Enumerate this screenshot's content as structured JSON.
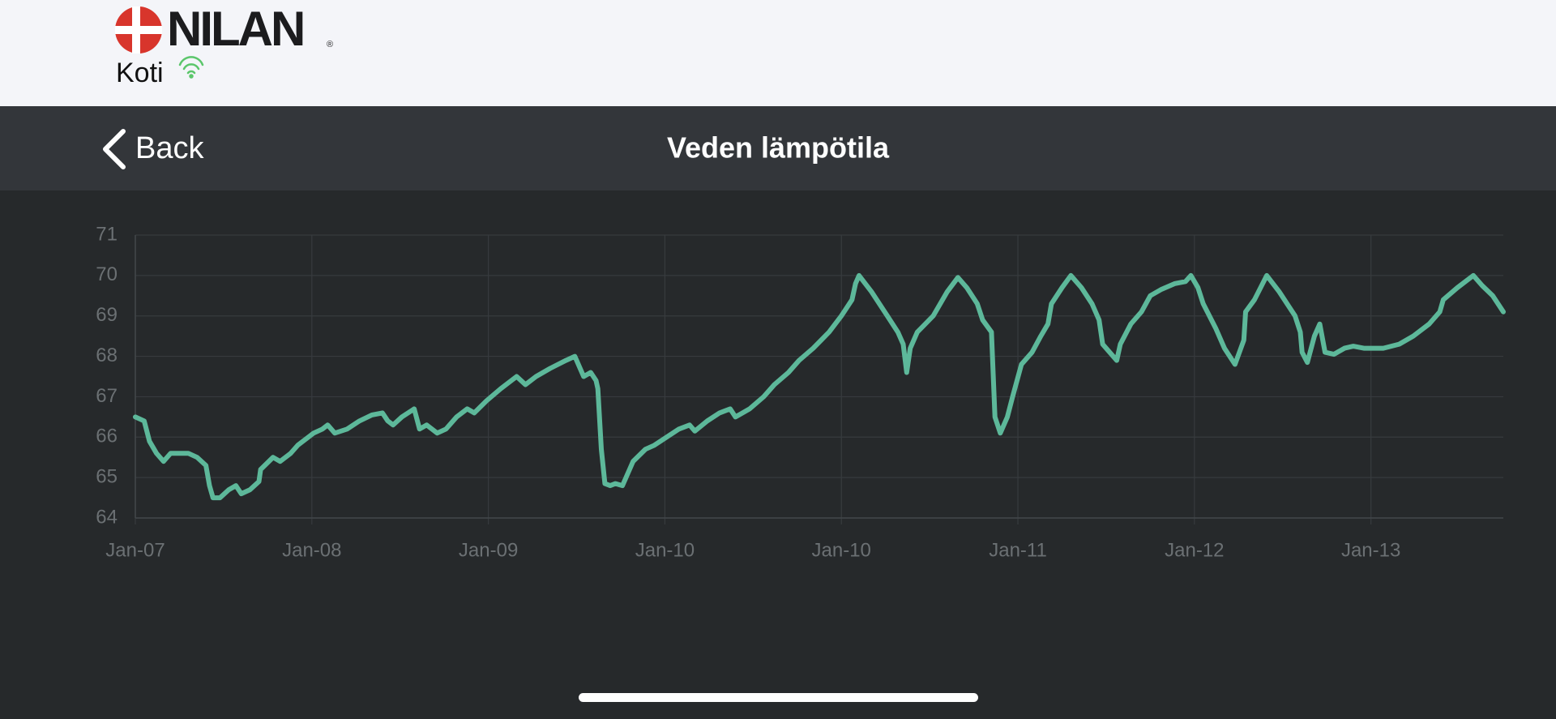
{
  "header": {
    "logo_text": "NILAN",
    "registered": "®",
    "home": "Koti"
  },
  "nav": {
    "back": "Back",
    "title": "Veden lämpötila"
  },
  "chart_data": {
    "type": "line",
    "x": [
      0,
      0.05,
      0.08,
      0.12,
      0.16,
      0.2,
      0.3,
      0.35,
      0.4,
      0.42,
      0.44,
      0.48,
      0.53,
      0.57,
      0.6,
      0.65,
      0.7,
      0.71,
      0.78,
      0.82,
      0.88,
      0.92,
      1.01,
      1.06,
      1.09,
      1.13,
      1.2,
      1.27,
      1.34,
      1.4,
      1.43,
      1.46,
      1.51,
      1.58,
      1.61,
      1.65,
      1.71,
      1.76,
      1.82,
      1.88,
      1.92,
      1.99,
      2.07,
      2.16,
      2.21,
      2.27,
      2.35,
      2.44,
      2.49,
      2.54,
      2.58,
      2.61,
      2.62,
      2.64,
      2.66,
      2.69,
      2.72,
      2.76,
      2.82,
      2.89,
      2.94,
      3.01,
      3.08,
      3.14,
      3.17,
      3.24,
      3.31,
      3.37,
      3.4,
      3.48,
      3.56,
      3.62,
      3.7,
      3.76,
      3.84,
      3.93,
      4.0,
      4.06,
      4.08,
      4.1,
      4.17,
      4.26,
      4.32,
      4.35,
      4.37,
      4.39,
      4.43,
      4.52,
      4.6,
      4.66,
      4.71,
      4.77,
      4.8,
      4.85,
      4.87,
      4.9,
      4.94,
      4.97,
      5.02,
      5.08,
      5.13,
      5.17,
      5.19,
      5.25,
      5.3,
      5.36,
      5.42,
      5.46,
      5.48,
      5.56,
      5.58,
      5.64,
      5.7,
      5.75,
      5.81,
      5.89,
      5.95,
      5.98,
      6.02,
      6.05,
      6.12,
      6.17,
      6.23,
      6.28,
      6.29,
      6.34,
      6.41,
      6.48,
      6.57,
      6.6,
      6.61,
      6.64,
      6.68,
      6.71,
      6.74,
      6.79,
      6.85,
      6.9,
      6.96,
      7.07,
      7.16,
      7.24,
      7.33,
      7.39,
      7.41,
      7.49,
      7.58,
      7.63,
      7.69,
      7.75
    ],
    "series": [
      {
        "color": "#5db89a",
        "values": [
          66.5,
          66.4,
          65.9,
          65.6,
          65.4,
          65.6,
          65.6,
          65.5,
          65.3,
          64.8,
          64.5,
          64.5,
          64.7,
          64.8,
          64.6,
          64.7,
          64.9,
          65.2,
          65.5,
          65.4,
          65.6,
          65.8,
          66.1,
          66.2,
          66.3,
          66.1,
          66.2,
          66.4,
          66.55,
          66.6,
          66.4,
          66.3,
          66.5,
          66.7,
          66.2,
          66.3,
          66.1,
          66.2,
          66.5,
          66.7,
          66.6,
          66.9,
          67.2,
          67.5,
          67.3,
          67.5,
          67.7,
          67.9,
          68.0,
          67.5,
          67.6,
          67.4,
          67.2,
          65.7,
          64.85,
          64.8,
          64.85,
          64.8,
          65.4,
          65.7,
          65.8,
          66.0,
          66.2,
          66.3,
          66.15,
          66.4,
          66.6,
          66.7,
          66.5,
          66.7,
          67.0,
          67.3,
          67.6,
          67.9,
          68.2,
          68.6,
          69.0,
          69.4,
          69.8,
          70.0,
          69.6,
          69.0,
          68.6,
          68.3,
          67.6,
          68.2,
          68.6,
          69.0,
          69.6,
          69.95,
          69.7,
          69.3,
          68.9,
          68.6,
          66.5,
          66.1,
          66.5,
          67.0,
          67.8,
          68.1,
          68.5,
          68.8,
          69.3,
          69.7,
          70.0,
          69.7,
          69.3,
          68.9,
          68.3,
          67.9,
          68.3,
          68.8,
          69.1,
          69.5,
          69.65,
          69.8,
          69.85,
          70.0,
          69.7,
          69.3,
          68.7,
          68.2,
          67.8,
          68.4,
          69.1,
          69.4,
          70.0,
          69.6,
          69.0,
          68.6,
          68.1,
          67.85,
          68.5,
          68.8,
          68.1,
          68.05,
          68.2,
          68.25,
          68.2,
          68.2,
          68.3,
          68.5,
          68.8,
          69.1,
          69.4,
          69.7,
          70.0,
          69.75,
          69.5,
          69.1
        ]
      }
    ],
    "xlim": [
      0,
      7.75
    ],
    "xticks": [
      {
        "value": 0,
        "label": "Jan-07"
      },
      {
        "value": 1,
        "label": "Jan-08"
      },
      {
        "value": 2,
        "label": "Jan-09"
      },
      {
        "value": 3,
        "label": "Jan-10"
      },
      {
        "value": 4,
        "label": "Jan-10"
      },
      {
        "value": 5,
        "label": "Jan-11"
      },
      {
        "value": 6,
        "label": "Jan-12"
      },
      {
        "value": 7,
        "label": "Jan-13"
      }
    ],
    "ylim": [
      64,
      71
    ],
    "yticks": [
      64,
      65,
      66,
      67,
      68,
      69,
      70,
      71
    ],
    "grid": true
  }
}
